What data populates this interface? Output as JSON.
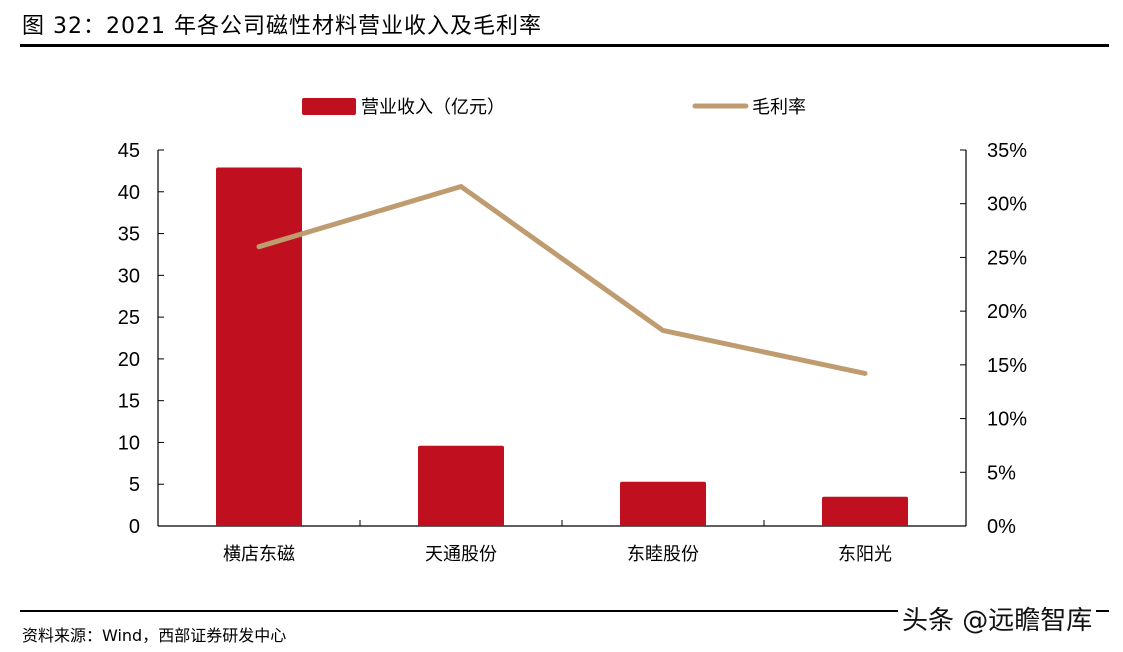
{
  "header": {
    "title": "图 32：2021 年各公司磁性材料营业收入及毛利率"
  },
  "footer": {
    "source": "资料来源：Wind，西部证券研发中心",
    "watermark": "头条 @远瞻智库"
  },
  "colors": {
    "bar": "#C00F1E",
    "line": "#BF9B70",
    "axis": "#000000"
  },
  "chart_data": {
    "type": "bar",
    "title": "2021 年各公司磁性材料营业收入及毛利率",
    "categories": [
      "横店东磁",
      "天通股份",
      "东睦股份",
      "东阳光"
    ],
    "series": [
      {
        "name": "营业收入（亿元）",
        "type": "bar",
        "axis": "left",
        "values": [
          42.9,
          9.6,
          5.3,
          3.5
        ]
      },
      {
        "name": "毛利率",
        "type": "line",
        "axis": "right",
        "values": [
          0.26,
          0.316,
          0.182,
          0.142
        ]
      }
    ],
    "left_axis": {
      "ylim": [
        0,
        45
      ],
      "ticks": [
        "0",
        "5",
        "10",
        "15",
        "20",
        "25",
        "30",
        "35",
        "40",
        "45"
      ]
    },
    "right_axis": {
      "ylim": [
        0,
        0.35
      ],
      "ticks": [
        "0%",
        "5%",
        "10%",
        "15%",
        "20%",
        "25%",
        "30%",
        "35%"
      ]
    },
    "legend": {
      "position": "top",
      "entries": [
        "营业收入（亿元）",
        "毛利率"
      ]
    },
    "grid": false
  }
}
